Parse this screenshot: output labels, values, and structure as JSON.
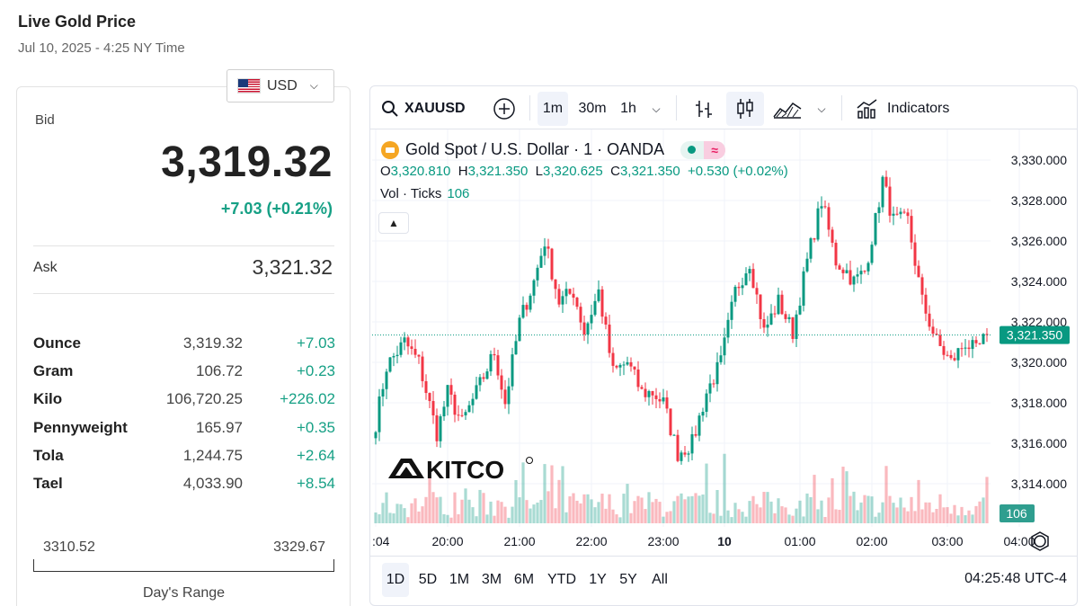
{
  "page": {
    "title": "Live Gold Price",
    "date": "Jul 10, 2025 - 4:25 NY Time"
  },
  "currency": {
    "selected": "USD",
    "flag": "us-flag-icon"
  },
  "bid": {
    "label": "Bid",
    "value": "3,319.32",
    "change": "+7.03 (+0.21%)"
  },
  "ask": {
    "label": "Ask",
    "value": "3,321.32"
  },
  "units": [
    {
      "name": "Ounce",
      "price": "3,319.32",
      "change": "+7.03"
    },
    {
      "name": "Gram",
      "price": "106.72",
      "change": "+0.23"
    },
    {
      "name": "Kilo",
      "price": "106,720.25",
      "change": "+226.02"
    },
    {
      "name": "Pennyweight",
      "price": "165.97",
      "change": "+0.35"
    },
    {
      "name": "Tola",
      "price": "1,244.75",
      "change": "+2.64"
    },
    {
      "name": "Tael",
      "price": "4,033.90",
      "change": "+8.54"
    }
  ],
  "days_range": {
    "low": "3310.52",
    "high": "3329.67",
    "label": "Day's Range"
  },
  "toolbar": {
    "symbol": "XAUUSD",
    "intervals": [
      "1m",
      "30m",
      "1h"
    ],
    "active_interval": "1m",
    "indicators_label": "Indicators"
  },
  "legend": {
    "title": "Gold Spot / U.S. Dollar · 1 · OANDA",
    "open_label": "O",
    "open": "3,320.810",
    "high_label": "H",
    "high": "3,321.350",
    "low_label": "L",
    "low": "3,320.625",
    "close_label": "C",
    "close": "3,321.350",
    "change": "+0.530 (+0.02%)",
    "vol_label": "Vol · Ticks",
    "vol_value": "106"
  },
  "watermark": "KITCO",
  "colors": {
    "up": "#089981",
    "down": "#f23645",
    "accent": "#16a085"
  },
  "chart_data": {
    "type": "candlestick",
    "symbol": "XAUUSD",
    "y_ticks": [
      "3,330.000",
      "3,328.000",
      "3,326.000",
      "3,324.000",
      "3,322.000",
      "3,320.000",
      "3,318.000",
      "3,316.000",
      "3,314.000"
    ],
    "y_tick_values": [
      3330,
      3328,
      3326,
      3324,
      3322,
      3320,
      3318,
      3316,
      3314
    ],
    "x_ticks": [
      ":04",
      "20:00",
      "21:00",
      "22:00",
      "23:00",
      "10",
      "01:00",
      "02:00",
      "03:00",
      "04:00"
    ],
    "last_price_label": "3,321.350",
    "last_price": 3321.35,
    "volume_label": "106",
    "price_path": [
      [
        0,
        3317.0
      ],
      [
        3,
        3319.8
      ],
      [
        8,
        3321.0
      ],
      [
        12,
        3320.0
      ],
      [
        17,
        3316.5
      ],
      [
        20,
        3318.5
      ],
      [
        24,
        3317.0
      ],
      [
        28,
        3318.5
      ],
      [
        33,
        3320.5
      ],
      [
        36,
        3318.0
      ],
      [
        40,
        3322.0
      ],
      [
        44,
        3324.0
      ],
      [
        47,
        3326.0
      ],
      [
        51,
        3323.0
      ],
      [
        55,
        3323.5
      ],
      [
        58,
        3321.5
      ],
      [
        62,
        3323.5
      ],
      [
        66,
        3319.5
      ],
      [
        70,
        3320.0
      ],
      [
        74,
        3318.5
      ],
      [
        77,
        3318.5
      ],
      [
        80,
        3318.0
      ],
      [
        84,
        3315.5
      ],
      [
        88,
        3316.0
      ],
      [
        92,
        3318.5
      ],
      [
        96,
        3320.0
      ],
      [
        100,
        3323.5
      ],
      [
        104,
        3325.0
      ],
      [
        108,
        3321.5
      ],
      [
        112,
        3323.0
      ],
      [
        116,
        3321.5
      ],
      [
        120,
        3325.0
      ],
      [
        124,
        3328.0
      ],
      [
        128,
        3325.0
      ],
      [
        131,
        3324.5
      ],
      [
        133,
        3324.0
      ],
      [
        136,
        3324.5
      ],
      [
        139,
        3327.0
      ],
      [
        141,
        3329.0
      ],
      [
        144,
        3327.0
      ],
      [
        148,
        3327.0
      ],
      [
        152,
        3323.0
      ],
      [
        156,
        3321.0
      ],
      [
        160,
        3320.0
      ],
      [
        164,
        3321.0
      ],
      [
        167,
        3320.5
      ],
      [
        170,
        3321.35
      ]
    ],
    "x_tick_slots": [
      0,
      20,
      40,
      60,
      80,
      97,
      118,
      138,
      159,
      179
    ]
  },
  "time_ranges": [
    "1D",
    "5D",
    "1M",
    "3M",
    "6M",
    "YTD",
    "1Y",
    "5Y",
    "All"
  ],
  "active_range": "1D",
  "clock": "04:25:48 UTC-4"
}
